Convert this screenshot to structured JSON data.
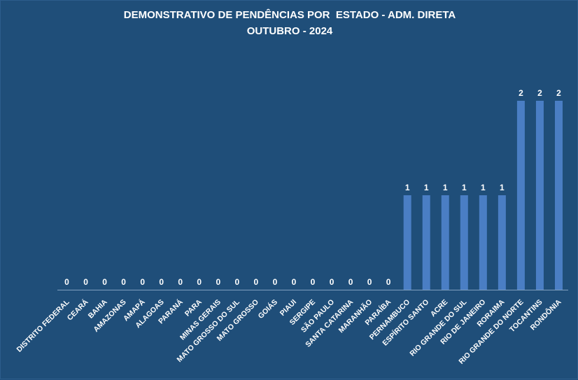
{
  "colors": {
    "background": "#1f4e79",
    "bar": "#4a7ec4",
    "text": "#ffffff",
    "axis": "#7f9fbf"
  },
  "chart_data": {
    "type": "bar",
    "title": "DEMONSTRATIVO DE PENDÊNCIAS POR  ESTADO - ADM. DIRETA",
    "subtitle": "OUTUBRO - 2024",
    "xlabel": "",
    "ylabel": "",
    "ylim": [
      0,
      2
    ],
    "grid": false,
    "legend": "none",
    "data_labels": true,
    "categories": [
      "DISTRITO FEDERAL",
      "CEARÁ",
      "BAHIA",
      "AMAZONAS",
      "AMAPÁ",
      "ALAGOAS",
      "PARANÁ",
      "PARA",
      "MINAS GERAIS",
      "MATO GROSSO DO SUL",
      "MATO GROSSO",
      "GOIÁS",
      "PIAUI",
      "SERGIPE",
      "SÃO PAULO",
      "SANTA CATARINA",
      "MARANHÃO",
      "PARAÍBA",
      "PERNAMBUCO",
      "ESPÍRITO SANTO",
      "ACRE",
      "RIO GRANDE DO SUL",
      "RIO DE JANEIRO",
      "RORAIMA",
      "RIO GRANDE DO NORTE",
      "TOCANTINS",
      "RONDÔNIA"
    ],
    "values": [
      0,
      0,
      0,
      0,
      0,
      0,
      0,
      0,
      0,
      0,
      0,
      0,
      0,
      0,
      0,
      0,
      0,
      0,
      1,
      1,
      1,
      1,
      1,
      1,
      2,
      2,
      2
    ]
  }
}
